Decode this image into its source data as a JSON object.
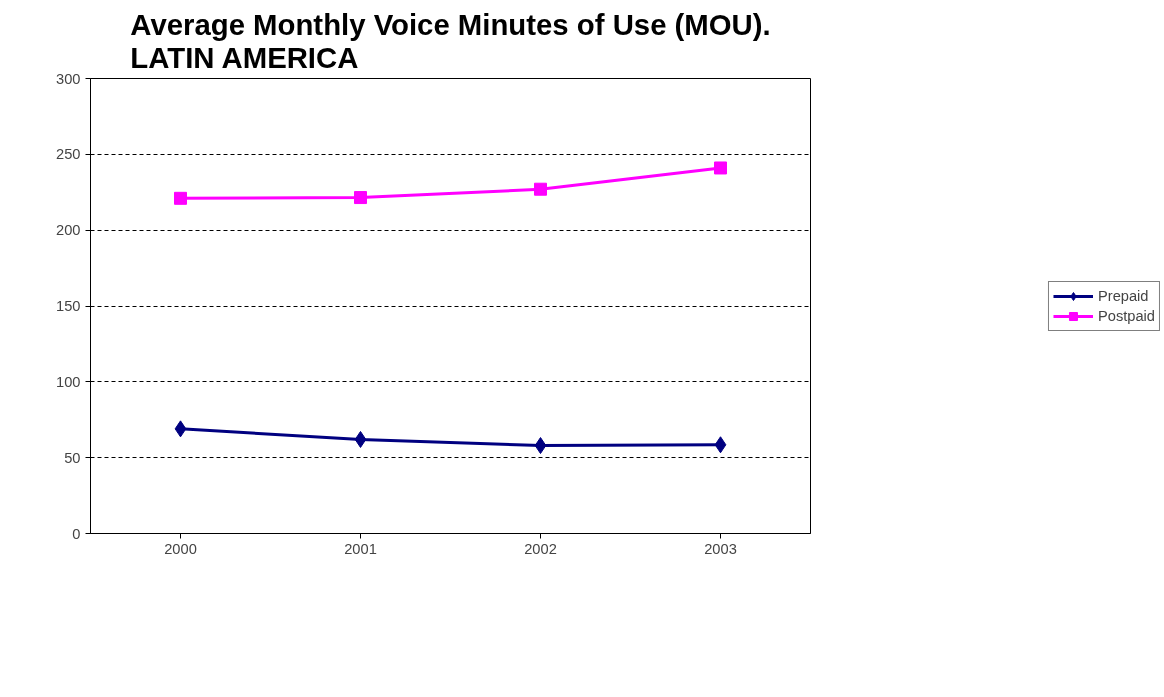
{
  "chart_data": {
    "type": "line",
    "title": "Average Monthly Voice Minutes of Use (MOU).\nLATIN AMERICA",
    "categories": [
      "2000",
      "2001",
      "2002",
      "2003"
    ],
    "series": [
      {
        "name": "Prepaid",
        "color": "#000080",
        "marker": "diamond",
        "values": [
          69,
          62,
          58,
          58.5
        ]
      },
      {
        "name": "Postpaid",
        "color": "#ff00ff",
        "marker": "square",
        "values": [
          221,
          221.5,
          227,
          241
        ]
      }
    ],
    "ylim": [
      0,
      300
    ],
    "yticks": [
      0,
      50,
      100,
      150,
      200,
      250,
      300
    ],
    "grid": "y",
    "legend": "right"
  }
}
